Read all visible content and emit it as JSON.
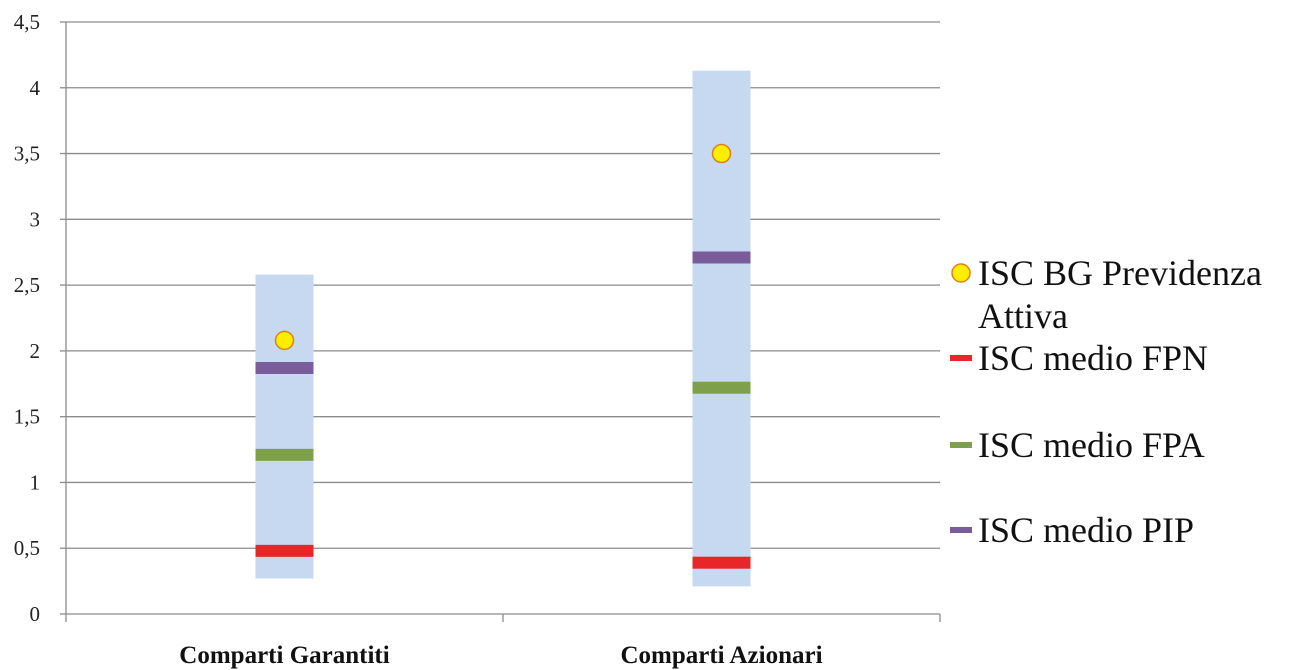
{
  "chart_data": {
    "type": "bar",
    "title": "",
    "xlabel": "",
    "ylabel": "",
    "ylim": [
      0,
      4.5
    ],
    "y_ticks": [
      "0",
      "0,5",
      "1",
      "1,5",
      "2",
      "2,5",
      "3",
      "3,5",
      "4",
      "4,5"
    ],
    "y_tick_values": [
      0,
      0.5,
      1,
      1.5,
      2,
      2.5,
      3,
      3.5,
      4,
      4.5
    ],
    "grid": true,
    "legend_position": "right",
    "categories": [
      "Comparti Garantiti",
      "Comparti Azionari"
    ],
    "range": {
      "low": [
        0.27,
        0.21
      ],
      "high": [
        2.58,
        4.13
      ],
      "color": "#c6d9f1"
    },
    "series": [
      {
        "name": "ISC BG Previdenza Attiva",
        "marker": "circle",
        "color": "#ffee00",
        "edge": "#e0801a",
        "values": [
          2.08,
          3.5
        ]
      },
      {
        "name": "ISC medio FPN",
        "marker": "dash",
        "color": "#e8262a",
        "values": [
          0.48,
          0.39
        ]
      },
      {
        "name": "ISC medio FPA",
        "marker": "dash",
        "color": "#7fa04a",
        "values": [
          1.21,
          1.72
        ]
      },
      {
        "name": "ISC medio PIP",
        "marker": "dash",
        "color": "#7a5c9a",
        "values": [
          1.87,
          2.71
        ]
      }
    ],
    "legend_lines": [
      [
        "ISC BG Previdenza",
        "Attiva"
      ],
      [
        "ISC medio FPN"
      ],
      [
        "ISC medio FPA"
      ],
      [
        "ISC medio PIP"
      ]
    ]
  }
}
